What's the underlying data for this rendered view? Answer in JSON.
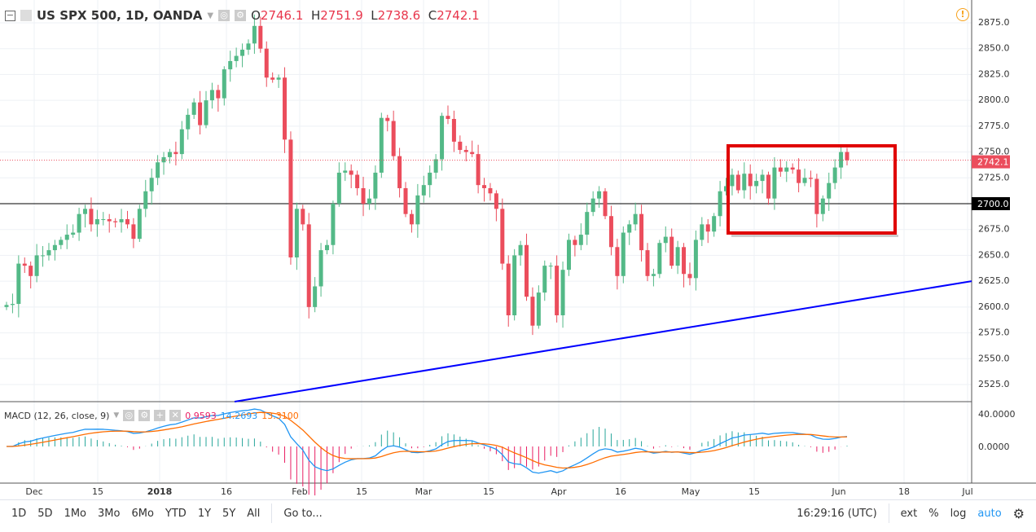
{
  "header": {
    "symbol": "US SPX 500, 1D, OANDA",
    "o_label": "O",
    "o": "2746.1",
    "h_label": "H",
    "h": "2751.9",
    "l_label": "L",
    "l": "2738.6",
    "c_label": "C",
    "c": "2742.1"
  },
  "macd": {
    "label": "MACD (12, 26, close, 9)",
    "hist": "0.9593",
    "macd": "14.2693",
    "signal": "13.3100",
    "axis": [
      "40.0000",
      "0.0000"
    ]
  },
  "price_axis": [
    "2875.0",
    "2850.0",
    "2825.0",
    "2800.0",
    "2775.0",
    "2750.0",
    "2725.0",
    "2700.0",
    "2675.0",
    "2650.0",
    "2625.0",
    "2600.0",
    "2575.0",
    "2550.0",
    "2525.0"
  ],
  "current_price_label": "2742.1",
  "level_label": "2700.0",
  "time_axis": [
    "Dec",
    "15",
    "2018",
    "16",
    "Feb",
    "15",
    "Mar",
    "15",
    "Apr",
    "16",
    "May",
    "15",
    "Jun",
    "18",
    "Jul"
  ],
  "bottom": {
    "ranges": [
      "1D",
      "5D",
      "1Mo",
      "3Mo",
      "6Mo",
      "YTD",
      "1Y",
      "5Y",
      "All"
    ],
    "goto": "Go to...",
    "time": "16:29:16 (UTC)",
    "ext": "ext",
    "pct": "%",
    "log": "log",
    "auto": "auto"
  },
  "colors": {
    "up": "#53b987",
    "down": "#eb4d5c",
    "trend": "#0000ff",
    "box": "#e00000",
    "macd": "#2196f3",
    "signal": "#ff6d00"
  },
  "chart_data": {
    "type": "candlestick",
    "first_open": 2600,
    "closes": [
      2602,
      2603,
      2642,
      2640,
      2630,
      2650,
      2650,
      2655,
      2660,
      2665,
      2670,
      2672,
      2690,
      2695,
      2680,
      2685,
      2685,
      2683,
      2682,
      2685,
      2680,
      2666,
      2695,
      2712,
      2725,
      2740,
      2745,
      2750,
      2748,
      2772,
      2786,
      2798,
      2776,
      2800,
      2810,
      2802,
      2830,
      2838,
      2843,
      2849,
      2855,
      2872,
      2850,
      2822,
      2820,
      2822,
      2762,
      2648,
      2695,
      2680,
      2600,
      2620,
      2655,
      2660,
      2700,
      2730,
      2732,
      2728,
      2715,
      2700,
      2705,
      2730,
      2783,
      2780,
      2746,
      2715,
      2690,
      2680,
      2708,
      2718,
      2730,
      2743,
      2785,
      2782,
      2760,
      2752,
      2750,
      2748,
      2718,
      2715,
      2710,
      2695,
      2642,
      2592,
      2650,
      2660,
      2610,
      2582,
      2614,
      2640,
      2640,
      2592,
      2636,
      2665,
      2660,
      2670,
      2692,
      2705,
      2712,
      2688,
      2658,
      2630,
      2672,
      2680,
      2690,
      2655,
      2630,
      2632,
      2662,
      2668,
      2640,
      2658,
      2632,
      2628,
      2665,
      2680,
      2673,
      2688,
      2712,
      2717,
      2728,
      2713,
      2729,
      2717,
      2722,
      2728,
      2705,
      2735,
      2731,
      2735,
      2733,
      2720,
      2725,
      2724,
      2690,
      2705,
      2720,
      2735,
      2750,
      2742.1
    ],
    "ylim": [
      2510,
      2885
    ],
    "trendline": [
      [
        2525,
        2505
      ],
      [
        2625,
        2625
      ]
    ],
    "horizontal_level": 2700
  }
}
